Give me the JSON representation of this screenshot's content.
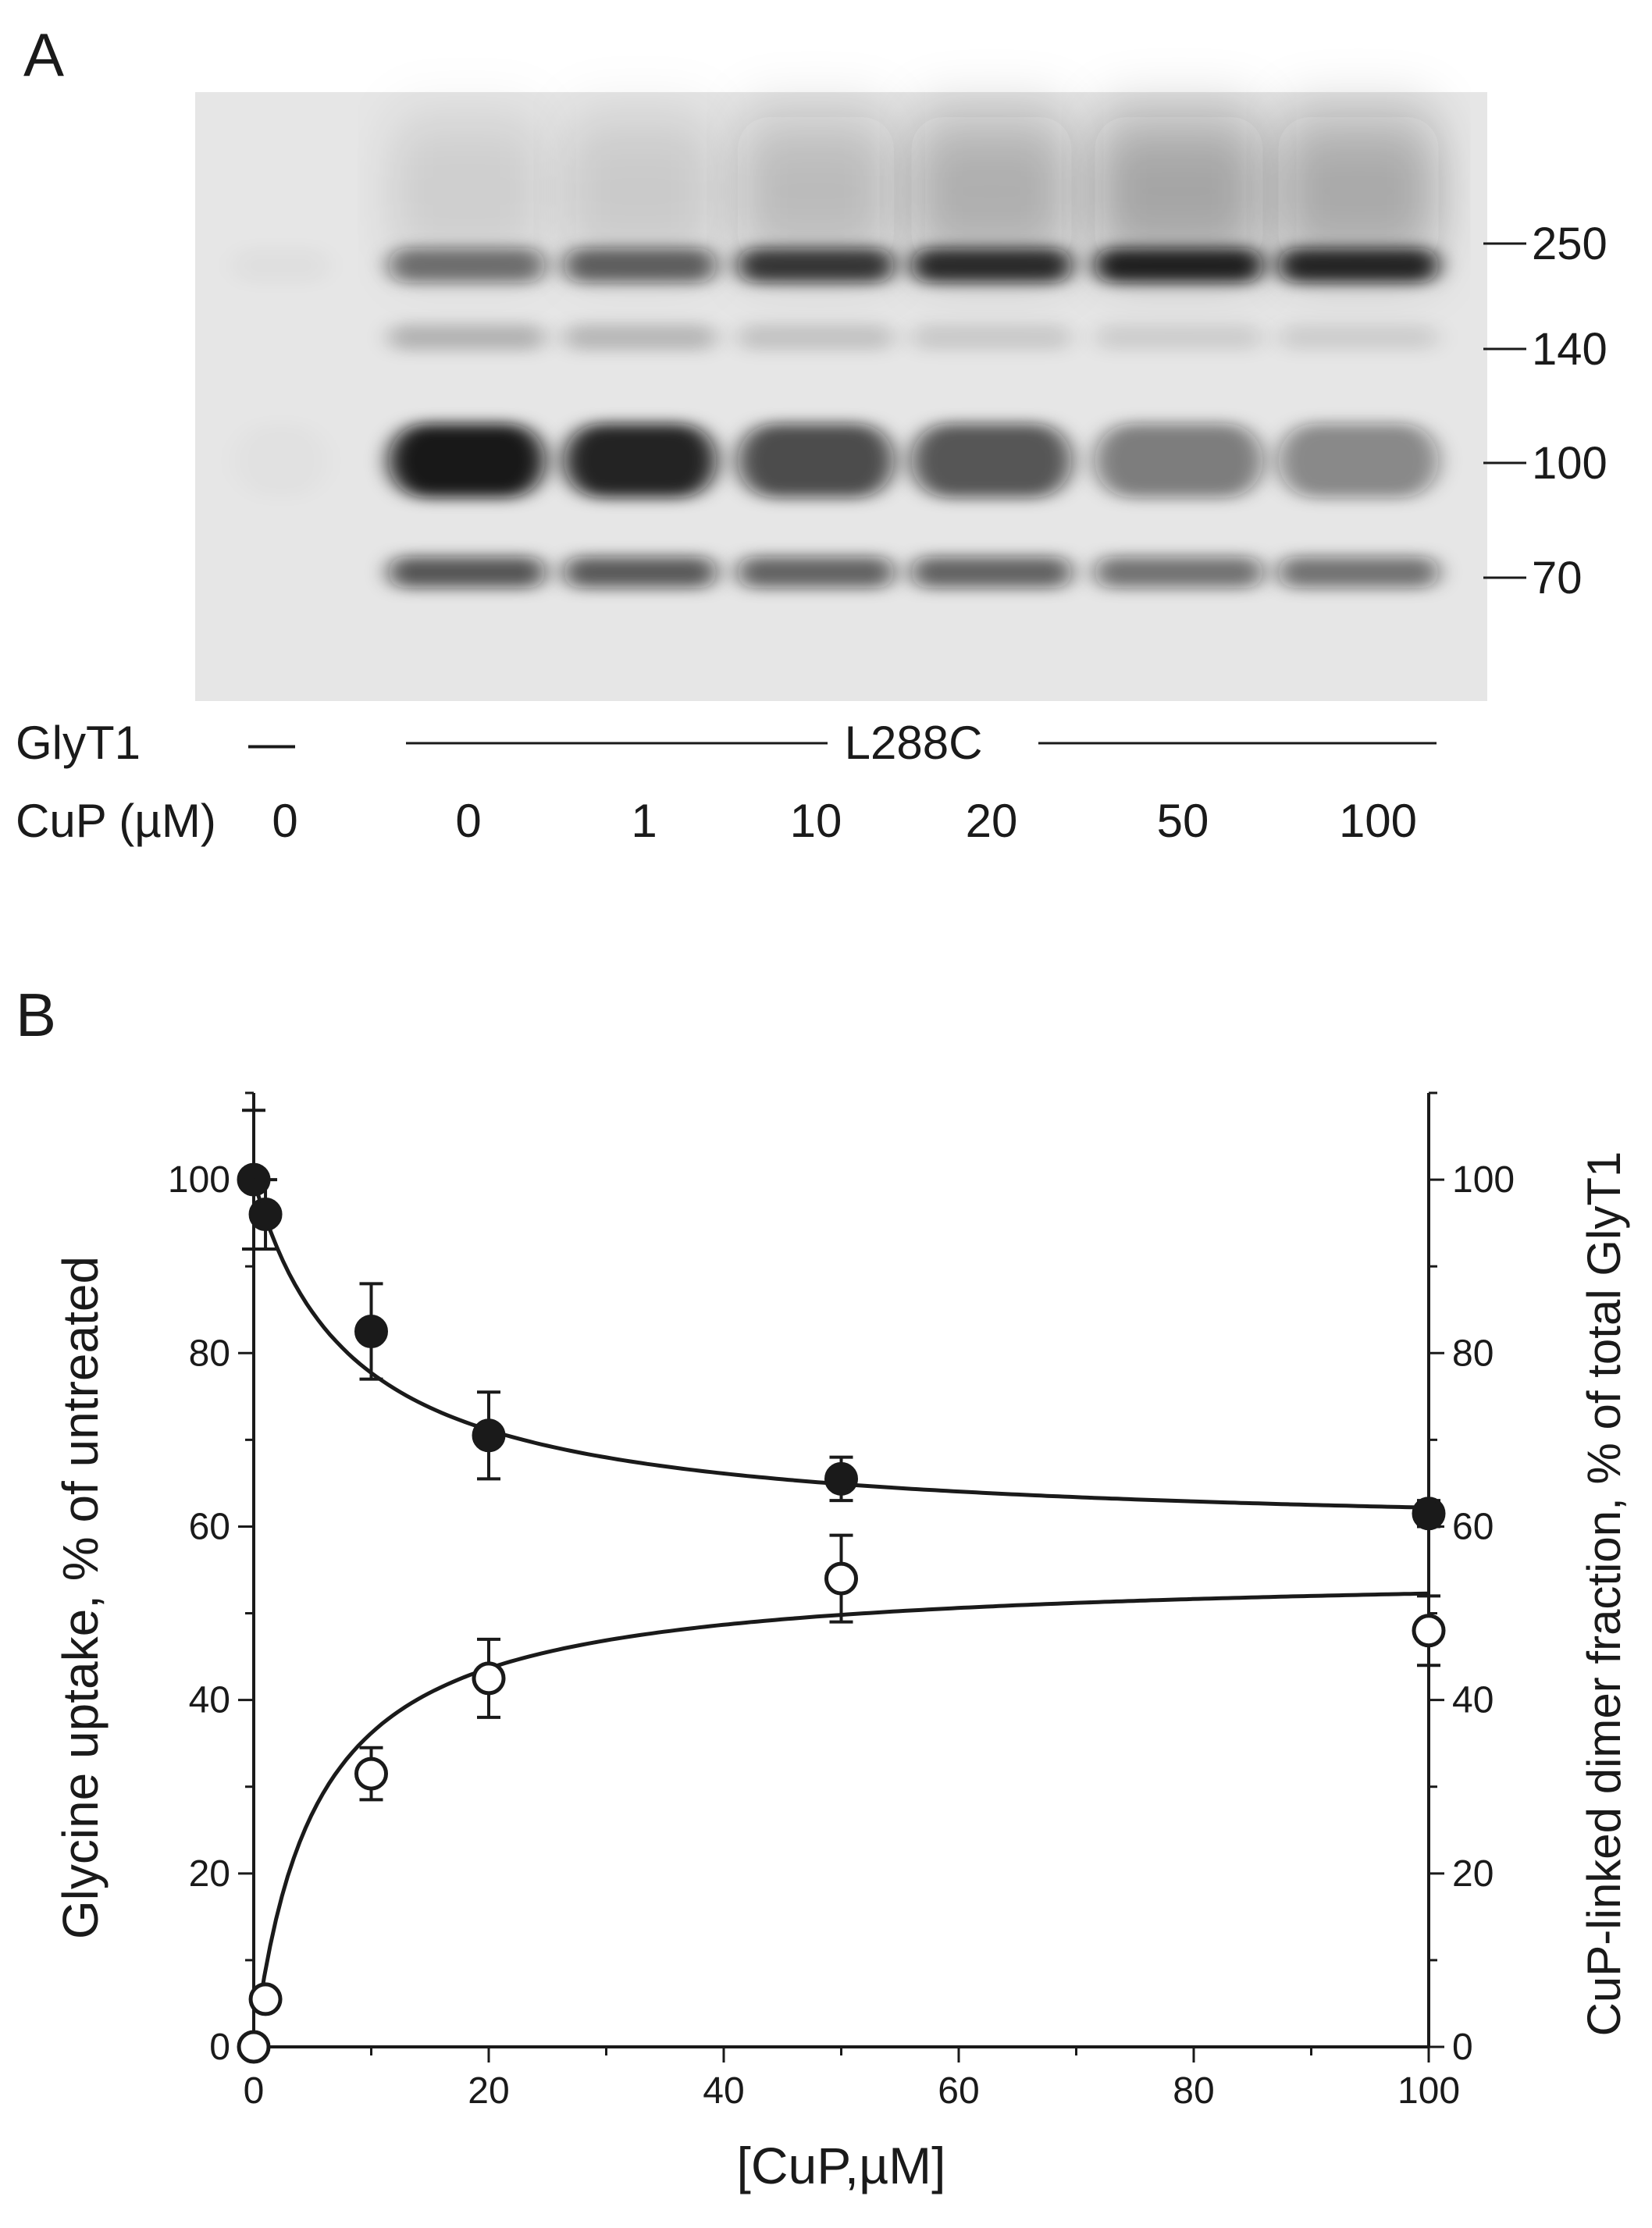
{
  "panel_a": {
    "letter": "A",
    "markers": [
      "250",
      "140",
      "100",
      "70"
    ],
    "row_label_glyt1": "GlyT1",
    "row_label_cup": "CuP (µM)",
    "control_label": "—",
    "construct_label": "L288C",
    "cup_values": [
      "0",
      "0",
      "1",
      "10",
      "20",
      "50",
      "100"
    ],
    "band_intensity": {
      "band_250": [
        0.03,
        0.55,
        0.62,
        0.8,
        0.85,
        0.9,
        0.88
      ],
      "band_140": [
        0.0,
        0.22,
        0.2,
        0.15,
        0.12,
        0.1,
        0.1
      ],
      "band_100": [
        0.02,
        0.95,
        0.9,
        0.72,
        0.68,
        0.5,
        0.45
      ],
      "band_70": [
        0.0,
        0.68,
        0.66,
        0.62,
        0.62,
        0.55,
        0.55
      ]
    }
  },
  "panel_b": {
    "letter": "B"
  },
  "chart_data": {
    "type": "scatter",
    "xlabel": "[CuP,µM]",
    "ylabel_left": "Glycine uptake, % of untreated",
    "ylabel_right": "CuP-linked dimer fraction, % of total GlyT1",
    "xlim": [
      0,
      100
    ],
    "ylim": [
      0,
      110
    ],
    "x_ticks": [
      "0",
      "20",
      "40",
      "60",
      "80",
      "100"
    ],
    "y_ticks": [
      "0",
      "20",
      "40",
      "60",
      "80",
      "100"
    ],
    "colors": {
      "filled": "#1a1a1a",
      "open": "#ffffff",
      "line": "#1a1a1a"
    },
    "series": [
      {
        "marker": "filled-circle",
        "x": [
          0,
          1,
          10,
          20,
          50,
          100
        ],
        "y": [
          100,
          96,
          82.5,
          70.5,
          65.5,
          61.5
        ],
        "err": [
          8,
          4,
          5.5,
          5,
          2.5,
          1.5
        ]
      },
      {
        "marker": "open-circle",
        "x": [
          0,
          1,
          10,
          20,
          50,
          100
        ],
        "y": [
          0,
          5.5,
          31.5,
          42.5,
          54,
          48
        ],
        "err": [
          0.5,
          1,
          3,
          4.5,
          5,
          4
        ]
      }
    ],
    "fits": [
      {
        "form": "decay",
        "y0": 100,
        "amplitude": 41,
        "k_half": 8.4
      },
      {
        "form": "rise",
        "amplitude": 55,
        "k_half": 5.2
      }
    ]
  }
}
